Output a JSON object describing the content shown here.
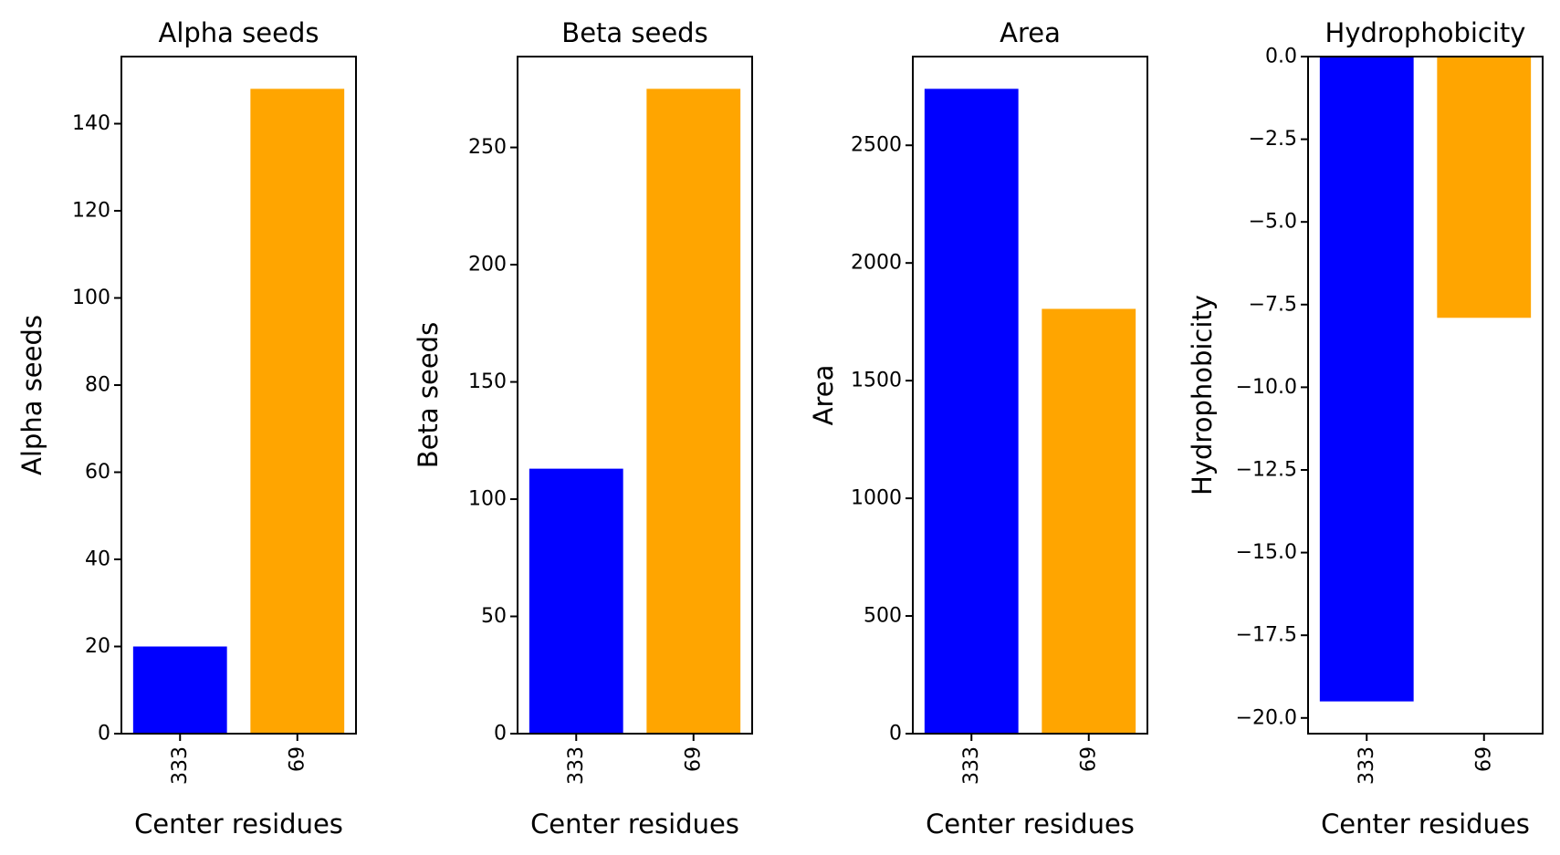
{
  "colors": {
    "series_a": "#0000ff",
    "series_b": "#ffa500",
    "axes": "#000000",
    "background": "#ffffff"
  },
  "chart_data": [
    {
      "type": "bar",
      "title": "Alpha seeds",
      "xlabel": "Center residues",
      "ylabel": "Alpha seeds",
      "categories": [
        "333",
        "69"
      ],
      "values": [
        20,
        148
      ],
      "bar_colors": [
        "#0000ff",
        "#ffa500"
      ],
      "ylim": [
        0,
        155.4
      ],
      "yticks": [
        0,
        20,
        40,
        60,
        80,
        100,
        120,
        140
      ],
      "ytick_labels": [
        "0",
        "20",
        "40",
        "60",
        "80",
        "100",
        "120",
        "140"
      ],
      "grid": false
    },
    {
      "type": "bar",
      "title": "Beta seeds",
      "xlabel": "Center residues",
      "ylabel": "Beta seeds",
      "categories": [
        "333",
        "69"
      ],
      "values": [
        113,
        275
      ],
      "bar_colors": [
        "#0000ff",
        "#ffa500"
      ],
      "ylim": [
        0,
        288.75
      ],
      "yticks": [
        0,
        50,
        100,
        150,
        200,
        250
      ],
      "ytick_labels": [
        "0",
        "50",
        "100",
        "150",
        "200",
        "250"
      ],
      "grid": false
    },
    {
      "type": "bar",
      "title": "Area",
      "xlabel": "Center residues",
      "ylabel": "Area",
      "categories": [
        "333",
        "69"
      ],
      "values": [
        2740,
        1805
      ],
      "bar_colors": [
        "#0000ff",
        "#ffa500"
      ],
      "ylim": [
        0,
        2877
      ],
      "yticks": [
        0,
        500,
        1000,
        1500,
        2000,
        2500
      ],
      "ytick_labels": [
        "0",
        "500",
        "1000",
        "1500",
        "2000",
        "2500"
      ],
      "grid": false
    },
    {
      "type": "bar",
      "title": "Hydrophobicity",
      "xlabel": "Center residues",
      "ylabel": "Hydrophobicity",
      "categories": [
        "333",
        "69"
      ],
      "values": [
        -19.5,
        -7.9
      ],
      "bar_colors": [
        "#0000ff",
        "#ffa500"
      ],
      "ylim": [
        -20.475,
        0
      ],
      "yticks": [
        0,
        -2.5,
        -5,
        -7.5,
        -10,
        -12.5,
        -15,
        -17.5,
        -20
      ],
      "ytick_labels": [
        "0.0",
        "−2.5",
        "−5.0",
        "−7.5",
        "−10.0",
        "−12.5",
        "−15.0",
        "−17.5",
        "−20.0"
      ],
      "grid": false
    }
  ]
}
